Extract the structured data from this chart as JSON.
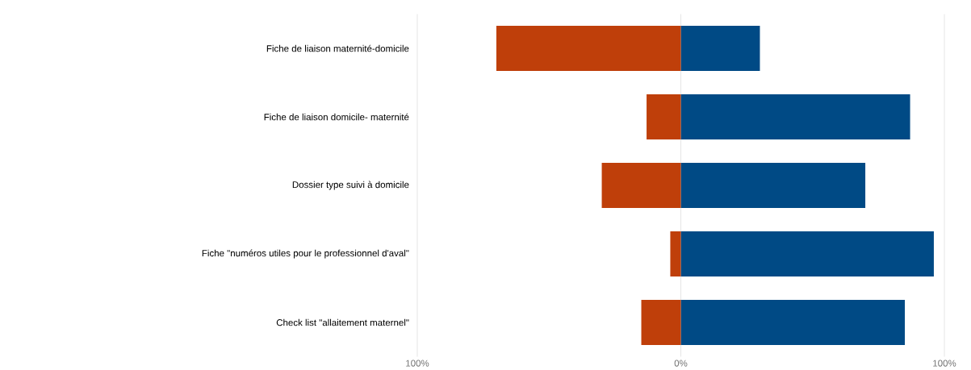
{
  "chart_data": {
    "type": "bar",
    "orientation": "horizontal",
    "categories": [
      "Fiche de liaison maternité-domicile",
      "Fiche de liaison domicile- maternité",
      "Dossier type suivi à domicile",
      "Fiche \"numéros utiles pour le professionnel d'aval\"",
      "Check list \"allaitement maternel\""
    ],
    "series": [
      {
        "color": "#bf3f0a",
        "values": [
          -70,
          -13,
          -30,
          -4,
          -15
        ]
      },
      {
        "color": "#004a85",
        "values": [
          30,
          87,
          70,
          96,
          85
        ]
      }
    ],
    "xlim": [
      -100,
      100
    ],
    "xticks": [
      {
        "value": -100,
        "label": "100%"
      },
      {
        "value": 0,
        "label": "0%"
      },
      {
        "value": 100,
        "label": "100%"
      }
    ],
    "grid": "x",
    "stacked": true
  }
}
